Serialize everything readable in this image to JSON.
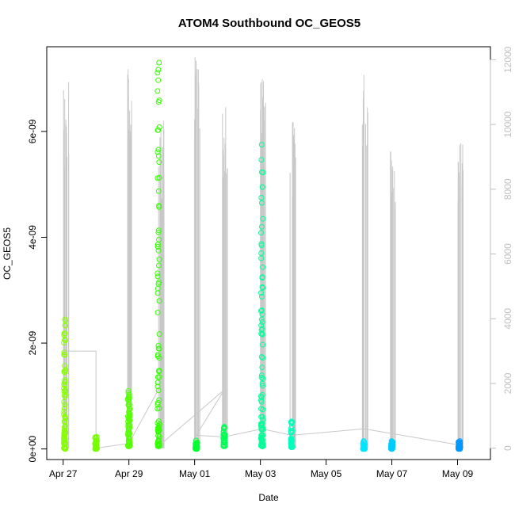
{
  "chart_data": {
    "type": "scatter",
    "title": "ATOM4 Southbound OC_GEOS5",
    "xlabel": "Date",
    "ylabel": "OC_GEOS5",
    "x_tick_labels": [
      "Apr 27",
      "Apr 29",
      "May 01",
      "May 03",
      "May 05",
      "May 07",
      "May 09"
    ],
    "x_tick_days": [
      0,
      2,
      4,
      6,
      8,
      10,
      12
    ],
    "xlim_days": [
      -0.5,
      13.0
    ],
    "y_tick_labels": [
      "0e+00",
      "2e-09",
      "4e-09",
      "6e-09"
    ],
    "y_tick_values": [
      0,
      2e-09,
      4e-09,
      6e-09
    ],
    "ylim": [
      -2e-10,
      7.6e-09
    ],
    "right_axis_tick_labels": [
      "0",
      "2000",
      "4000",
      "6000",
      "8000",
      "10000",
      "12000"
    ],
    "right_axis_tick_values": [
      0,
      2000,
      4000,
      6000,
      8000,
      10000,
      12000
    ],
    "right_ylim": [
      -350,
      12400
    ],
    "colors": {
      "right_axis": "#bfbfbf",
      "altitude_line": "#c8c8c8",
      "frame": "#000000"
    },
    "clusters": [
      {
        "day": 0.05,
        "min": 0.0,
        "max": 2.45e-09,
        "color": "#88ff00"
      },
      {
        "day": 1.0,
        "min": 0.0,
        "max": 2.3e-10,
        "color": "#77ff00"
      },
      {
        "day": 2.0,
        "min": 5e-11,
        "max": 1.1e-09,
        "color": "#55ff00"
      },
      {
        "day": 2.9,
        "min": 5e-11,
        "max": 7.3e-09,
        "color": "#33ff00"
      },
      {
        "day": 4.05,
        "min": 0.0,
        "max": 1.6e-10,
        "color": "#00ff33"
      },
      {
        "day": 4.9,
        "min": 5e-11,
        "max": 4.2e-10,
        "color": "#00ff55"
      },
      {
        "day": 6.05,
        "min": 5e-11,
        "max": 5.75e-09,
        "color": "#00ff99"
      },
      {
        "day": 6.95,
        "min": 3e-11,
        "max": 5.2e-10,
        "color": "#00ffbb"
      },
      {
        "day": 9.15,
        "min": 0.0,
        "max": 1.5e-10,
        "color": "#00e6ff"
      },
      {
        "day": 10.0,
        "min": 0.0,
        "max": 1.5e-10,
        "color": "#00ccff"
      },
      {
        "day": 12.05,
        "min": 0.0,
        "max": 1.5e-10,
        "color": "#0099ff"
      }
    ],
    "altitude_flights": [
      {
        "day": 0.05,
        "peak": 11400
      },
      {
        "day": 2.0,
        "peak": 11750
      },
      {
        "day": 2.95,
        "peak": 10200
      },
      {
        "day": 4.05,
        "peak": 12100
      },
      {
        "day": 4.9,
        "peak": 11000
      },
      {
        "day": 6.05,
        "peak": 11600
      },
      {
        "day": 6.95,
        "peak": 10100
      },
      {
        "day": 9.15,
        "peak": 11800
      },
      {
        "day": 10.0,
        "peak": 9800
      },
      {
        "day": 12.05,
        "peak": 9500
      }
    ]
  }
}
